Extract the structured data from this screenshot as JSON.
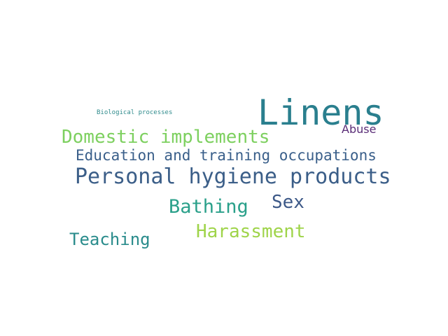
{
  "words": [
    {
      "text": "Linens",
      "color": "#2a7f8e"
    },
    {
      "text": "Biological processes",
      "color": "#2f8b8c"
    },
    {
      "text": "Abuse",
      "color": "#5a2d77"
    },
    {
      "text": "Domestic implements",
      "color": "#7dd05f"
    },
    {
      "text": "Education and training occupations",
      "color": "#3a5f8a"
    },
    {
      "text": "Personal hygiene products",
      "color": "#3b5e88"
    },
    {
      "text": "Sex",
      "color": "#3c5887"
    },
    {
      "text": "Bathing",
      "color": "#2aa08a"
    },
    {
      "text": "Harassment",
      "color": "#9fd44a"
    },
    {
      "text": "Teaching",
      "color": "#2a8c8c"
    }
  ]
}
